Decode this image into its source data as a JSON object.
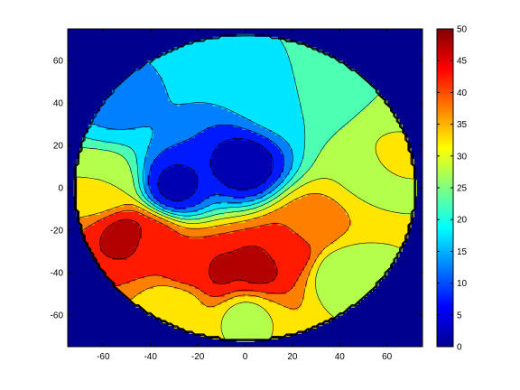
{
  "chart_data": {
    "type": "heatmap",
    "subtype": "filled-contour",
    "colormap": "jet",
    "title": "",
    "xlabel": "",
    "ylabel": "",
    "xlim": [
      -75,
      75
    ],
    "ylim": [
      -75,
      75
    ],
    "x_ticks": [
      -60,
      -40,
      -20,
      0,
      20,
      40,
      60
    ],
    "y_ticks": [
      -60,
      -40,
      -20,
      0,
      20,
      40,
      60
    ],
    "x_tick_labels": [
      "-60",
      "-40",
      "-20",
      "0",
      "20",
      "40",
      "60"
    ],
    "y_tick_labels": [
      "-60",
      "-40",
      "-20",
      "0",
      "20",
      "40",
      "60"
    ],
    "colorbar": {
      "range": [
        0,
        50
      ],
      "ticks": [
        0,
        5,
        10,
        15,
        20,
        25,
        30,
        35,
        40,
        45,
        50
      ],
      "tick_labels": [
        "0",
        "5",
        "10",
        "15",
        "20",
        "25",
        "30",
        "35",
        "40",
        "45",
        "50"
      ]
    },
    "contour_levels": [
      5,
      10,
      15,
      20,
      25,
      30,
      35,
      40,
      45
    ],
    "domain": {
      "shape": "circle",
      "center": [
        0,
        0
      ],
      "radius": 72
    },
    "background_value": 0,
    "grid": false,
    "field": {
      "description_points": [
        {
          "x": -50,
          "y": -22,
          "value": 47
        },
        {
          "x": -40,
          "y": -25,
          "value": 44
        },
        {
          "x": -25,
          "y": -38,
          "value": 43
        },
        {
          "x": -10,
          "y": -40,
          "value": 46
        },
        {
          "x": 5,
          "y": -38,
          "value": 47
        },
        {
          "x": 18,
          "y": -30,
          "value": 44
        },
        {
          "x": 28,
          "y": -18,
          "value": 38
        },
        {
          "x": -60,
          "y": 0,
          "value": 30
        },
        {
          "x": -30,
          "y": -55,
          "value": 30
        },
        {
          "x": 0,
          "y": -60,
          "value": 28
        },
        {
          "x": 40,
          "y": -40,
          "value": 26
        },
        {
          "x": 55,
          "y": 10,
          "value": 27
        },
        {
          "x": 58,
          "y": 12,
          "value": 32
        },
        {
          "x": 30,
          "y": 45,
          "value": 22
        },
        {
          "x": 15,
          "y": 42,
          "value": 18
        },
        {
          "x": -55,
          "y": 40,
          "value": 14
        },
        {
          "x": -30,
          "y": 0,
          "value": 3
        },
        {
          "x": 0,
          "y": 10,
          "value": 2
        }
      ]
    }
  }
}
